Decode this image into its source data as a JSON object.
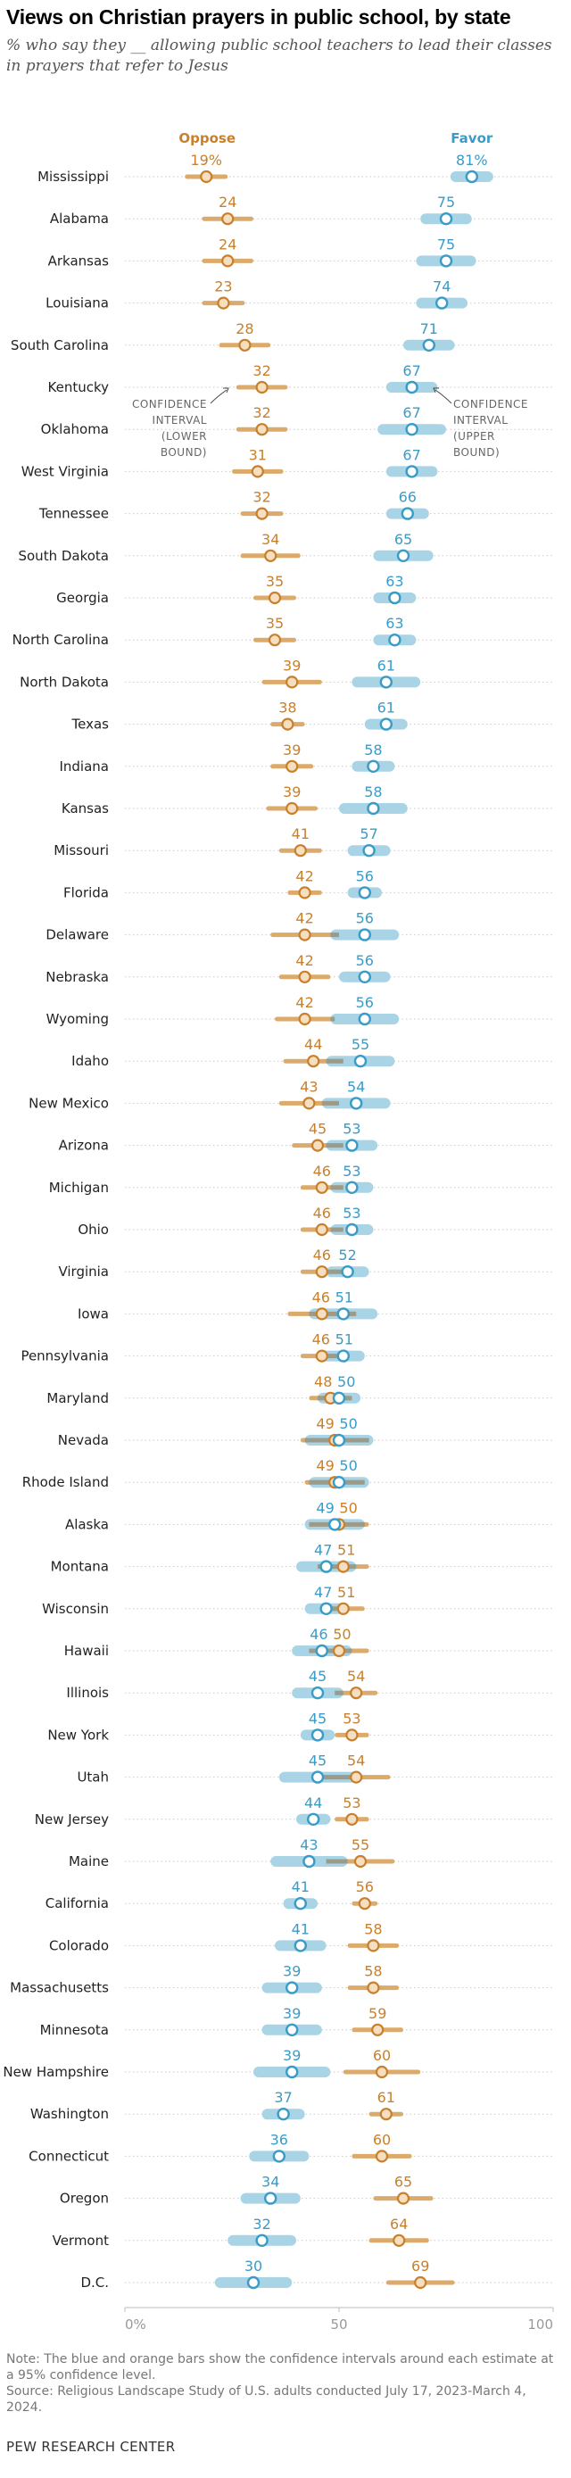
{
  "title": "Views on Christian prayers in public school, by state",
  "subtitle": "% who say they __ allowing public school teachers to lead their classes in prayers that refer to Jesus",
  "note": "Note: The blue and orange bars show the confidence intervals around each estimate at a 95% confidence level.",
  "source": "Source: Religious Landscape Study of U.S. adults conducted July 17, 2023-March 4, 2024.",
  "brand": "PEW RESEARCH CENTER",
  "annotations": {
    "lower": [
      "CONFIDENCE",
      "INTERVAL",
      "(LOWER",
      "BOUND)"
    ],
    "upper": [
      "CONFIDENCE",
      "INTERVAL",
      "(UPPER",
      "BOUND)"
    ]
  },
  "colors": {
    "oppose": "#c8802c",
    "oppose_bar": "#dcaa6a",
    "favor": "#3a9cc6",
    "favor_bar": "#a9d4e6",
    "overlap_bar": "#9b9b8c"
  },
  "chart_data": {
    "type": "dot",
    "xlim": [
      0,
      100
    ],
    "x_ticks": [
      "0%",
      "50",
      "100"
    ],
    "series": [
      {
        "name": "Oppose",
        "key": "oppose",
        "values": [
          19,
          24,
          24,
          23,
          28,
          32,
          32,
          31,
          32,
          34,
          35,
          35,
          39,
          38,
          39,
          39,
          41,
          42,
          42,
          42,
          42,
          44,
          43,
          45,
          46,
          46,
          46,
          46,
          46,
          48,
          49,
          49,
          50,
          51,
          51,
          50,
          54,
          53,
          54,
          53,
          55,
          56,
          58,
          58,
          59,
          60,
          61,
          60,
          65,
          64,
          69
        ],
        "ci": [
          5,
          6,
          6,
          5,
          6,
          6,
          6,
          6,
          5,
          7,
          5,
          5,
          7,
          4,
          5,
          6,
          5,
          4,
          8,
          6,
          7,
          7,
          7,
          6,
          5,
          5,
          5,
          8,
          5,
          5,
          8,
          7,
          7,
          6,
          5,
          7,
          5,
          4,
          8,
          4,
          8,
          3,
          6,
          6,
          6,
          9,
          4,
          7,
          7,
          7,
          8
        ]
      },
      {
        "name": "Favor",
        "key": "favor",
        "values": [
          81,
          75,
          75,
          74,
          71,
          67,
          67,
          67,
          66,
          65,
          63,
          63,
          61,
          61,
          58,
          58,
          57,
          56,
          56,
          56,
          56,
          55,
          54,
          53,
          53,
          53,
          52,
          51,
          51,
          50,
          50,
          50,
          49,
          47,
          47,
          46,
          45,
          45,
          45,
          44,
          43,
          41,
          41,
          39,
          39,
          39,
          37,
          36,
          34,
          32,
          30
        ],
        "ci": [
          5,
          6,
          7,
          6,
          6,
          6,
          8,
          6,
          5,
          7,
          5,
          5,
          8,
          5,
          5,
          8,
          5,
          4,
          8,
          6,
          8,
          8,
          8,
          6,
          5,
          5,
          5,
          8,
          5,
          5,
          8,
          7,
          7,
          7,
          5,
          7,
          6,
          4,
          9,
          4,
          9,
          4,
          6,
          7,
          7,
          9,
          5,
          7,
          7,
          8,
          9
        ]
      }
    ],
    "categories": [
      "Mississippi",
      "Alabama",
      "Arkansas",
      "Louisiana",
      "South Carolina",
      "Kentucky",
      "Oklahoma",
      "West Virginia",
      "Tennessee",
      "South Dakota",
      "Georgia",
      "North Carolina",
      "North Dakota",
      "Texas",
      "Indiana",
      "Kansas",
      "Missouri",
      "Florida",
      "Delaware",
      "Nebraska",
      "Wyoming",
      "Idaho",
      "New Mexico",
      "Arizona",
      "Michigan",
      "Ohio",
      "Virginia",
      "Iowa",
      "Pennsylvania",
      "Maryland",
      "Nevada",
      "Rhode Island",
      "Alaska",
      "Montana",
      "Wisconsin",
      "Hawaii",
      "Illinois",
      "New York",
      "Utah",
      "New Jersey",
      "Maine",
      "California",
      "Colorado",
      "Massachusetts",
      "Minnesota",
      "New Hampshire",
      "Washington",
      "Connecticut",
      "Oregon",
      "Vermont",
      "D.C."
    ],
    "value_labels_first_row": [
      "19%",
      "81%"
    ]
  }
}
